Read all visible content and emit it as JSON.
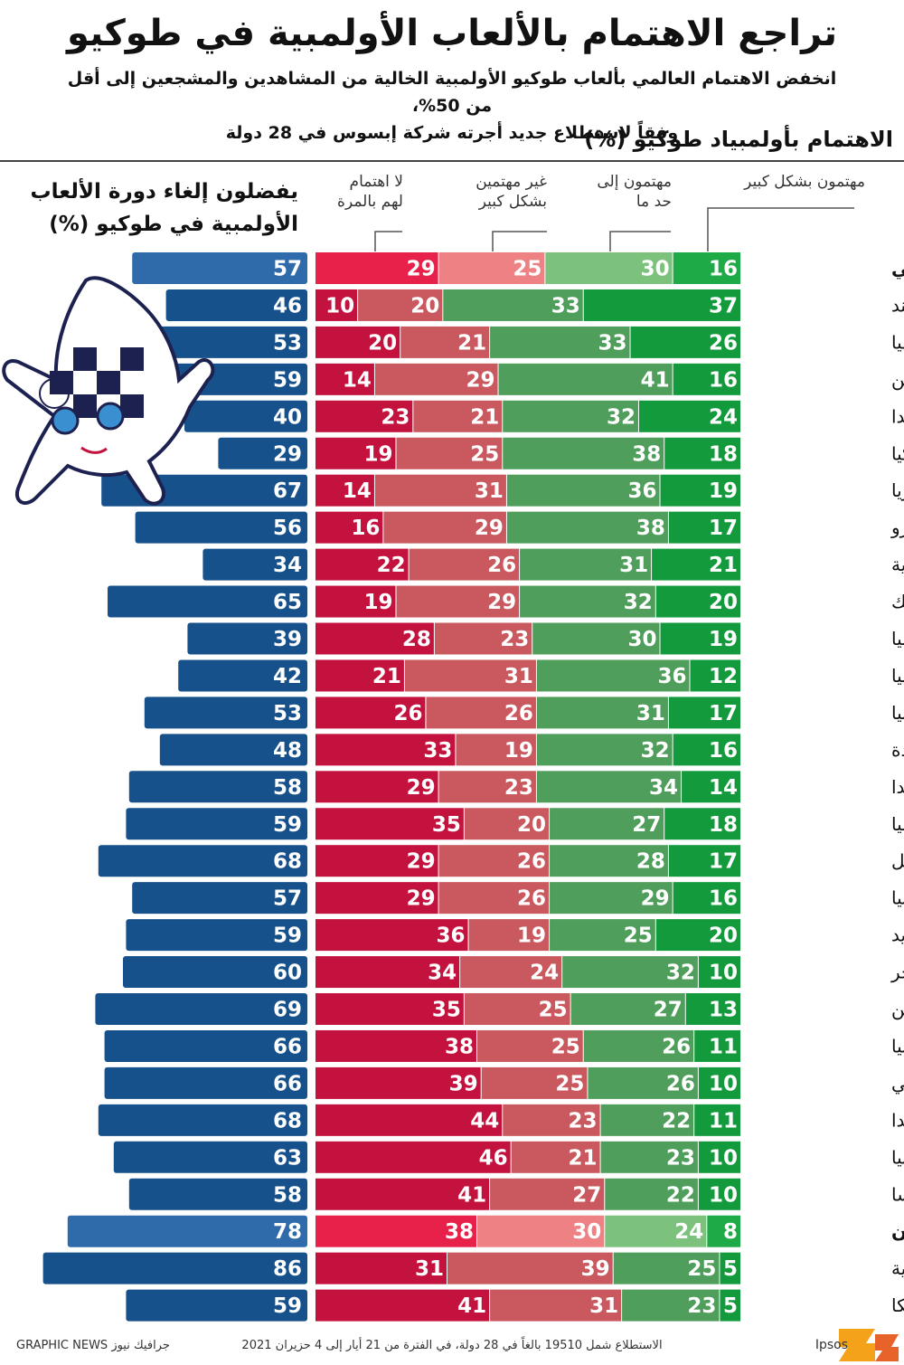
{
  "title": "تراجع الاهتمام بالألعاب الأولمبية في طوكيو",
  "subtitle_line1": "انخفض الاهتمام العالمي بألعاب طوكيو الأولمبية الخالية من المشاهدين والمشجعين إلى أقل من 50%،",
  "subtitle_line2": "وفقاً لاستطلاع جديد أجرته شركة إبسوس في 28 دولة",
  "chart_data": {
    "type": "bar",
    "interest_title": "الاهتمام بأولمبياد طوكيو (%)",
    "cancel_title_line1": "يفضلون إلغاء دورة الألعاب",
    "cancel_title_line2": "الأولمبية في طوكيو (%)",
    "interest_categories": [
      {
        "key": "very",
        "label1": "مهتمون بشكل كبير",
        "label2": ""
      },
      {
        "key": "somewhat",
        "label1": "مهتمون إلى",
        "label2": "حد ما"
      },
      {
        "key": "not_very",
        "label1": "غير مهتمين",
        "label2": "بشكل كبير"
      },
      {
        "key": "not_at_all",
        "label1": "لا اهتمام",
        "label2": "لهم بالمرة"
      }
    ],
    "colors": {
      "very": "#129a3c",
      "somewhat": "#4f9e5b",
      "not_very": "#c9595e",
      "not_at_all": "#c4123e",
      "very_hl": "#1faa48",
      "somewhat_hl": "#7cc27d",
      "not_very_hl": "#ee8184",
      "not_at_all_hl": "#e8214a",
      "cancel": "#17518c",
      "cancel_light": "#2f6aab"
    },
    "xlim_interest": [
      0,
      100
    ],
    "xlim_cancel": [
      0,
      100
    ],
    "rows": [
      {
        "country": "على الصعيد العالمي",
        "very": 16,
        "somewhat": 30,
        "not_very": 25,
        "not_at_all": 29,
        "cancel": 57,
        "highlight": true
      },
      {
        "country": "الهند",
        "very": 37,
        "somewhat": 33,
        "not_very": 20,
        "not_at_all": 10,
        "cancel": 46
      },
      {
        "country": "جنوب أفريقيا",
        "very": 26,
        "somewhat": 33,
        "not_very": 21,
        "not_at_all": 20,
        "cancel": 53
      },
      {
        "country": "الصين",
        "very": 16,
        "somewhat": 41,
        "not_very": 29,
        "not_at_all": 14,
        "cancel": 59
      },
      {
        "country": "بولندا",
        "very": 24,
        "somewhat": 32,
        "not_very": 21,
        "not_at_all": 23,
        "cancel": 40
      },
      {
        "country": "تركيا",
        "very": 18,
        "somewhat": 38,
        "not_very": 25,
        "not_at_all": 19,
        "cancel": 29
      },
      {
        "country": "ماليزيا",
        "very": 19,
        "somewhat": 36,
        "not_very": 31,
        "not_at_all": 14,
        "cancel": 67
      },
      {
        "country": "بيرو",
        "very": 17,
        "somewhat": 38,
        "not_very": 29,
        "not_at_all": 16,
        "cancel": 56
      },
      {
        "country": "السعودية",
        "very": 21,
        "somewhat": 31,
        "not_very": 26,
        "not_at_all": 22,
        "cancel": 34
      },
      {
        "country": "المكسيك",
        "very": 20,
        "somewhat": 32,
        "not_very": 29,
        "not_at_all": 19,
        "cancel": 65
      },
      {
        "country": "روسيا",
        "very": 19,
        "somewhat": 30,
        "not_very": 23,
        "not_at_all": 28,
        "cancel": 39
      },
      {
        "country": "إيطاليا",
        "very": 12,
        "somewhat": 36,
        "not_very": 31,
        "not_at_all": 21,
        "cancel": 42
      },
      {
        "country": "إسبانيا",
        "very": 17,
        "somewhat": 31,
        "not_very": 26,
        "not_at_all": 26,
        "cancel": 53
      },
      {
        "country": "الولايات المتحدة",
        "very": 16,
        "somewhat": 32,
        "not_very": 19,
        "not_at_all": 33,
        "cancel": 48
      },
      {
        "country": "هولندا",
        "very": 14,
        "somewhat": 34,
        "not_very": 23,
        "not_at_all": 29,
        "cancel": 58
      },
      {
        "country": "أستراليا",
        "very": 18,
        "somewhat": 27,
        "not_very": 20,
        "not_at_all": 35,
        "cancel": 59
      },
      {
        "country": "البرازيل",
        "very": 17,
        "somewhat": 28,
        "not_very": 26,
        "not_at_all": 29,
        "cancel": 68
      },
      {
        "country": "كولومبيا",
        "very": 16,
        "somewhat": 29,
        "not_very": 26,
        "not_at_all": 29,
        "cancel": 57
      },
      {
        "country": "السويد",
        "very": 20,
        "somewhat": 25,
        "not_very": 19,
        "not_at_all": 36,
        "cancel": 59
      },
      {
        "country": "المجر",
        "very": 10,
        "somewhat": 32,
        "not_very": 24,
        "not_at_all": 34,
        "cancel": 60
      },
      {
        "country": "الأرجنتين",
        "very": 13,
        "somewhat": 27,
        "not_very": 25,
        "not_at_all": 35,
        "cancel": 69
      },
      {
        "country": "بريطانيا",
        "very": 11,
        "somewhat": 26,
        "not_very": 25,
        "not_at_all": 38,
        "cancel": 66
      },
      {
        "country": "تشيلي",
        "very": 10,
        "somewhat": 26,
        "not_very": 25,
        "not_at_all": 39,
        "cancel": 66
      },
      {
        "country": "كندا",
        "very": 11,
        "somewhat": 22,
        "not_very": 23,
        "not_at_all": 44,
        "cancel": 68
      },
      {
        "country": "ألمانيا",
        "very": 10,
        "somewhat": 23,
        "not_very": 21,
        "not_at_all": 46,
        "cancel": 63
      },
      {
        "country": "فرنسا",
        "very": 10,
        "somewhat": 22,
        "not_very": 27,
        "not_at_all": 41,
        "cancel": 58
      },
      {
        "country": "اليابان",
        "very": 8,
        "somewhat": 24,
        "not_very": 30,
        "not_at_all": 38,
        "cancel": 78,
        "highlight": true
      },
      {
        "country": "كوريا الجنوبية",
        "very": 5,
        "somewhat": 25,
        "not_very": 39,
        "not_at_all": 31,
        "cancel": 86
      },
      {
        "country": "بلجيكا",
        "very": 5,
        "somewhat": 23,
        "not_very": 31,
        "not_at_all": 41,
        "cancel": 59
      }
    ]
  },
  "footer": {
    "source_logo": "Ipsos",
    "note": "الاستطلاع شمل 19510 بالغاً في 28 دولة، في الفترة من 21 أيار إلى 4 حزيران 2021",
    "credit": "GRAPHIC NEWS جرافيك نيوز"
  }
}
